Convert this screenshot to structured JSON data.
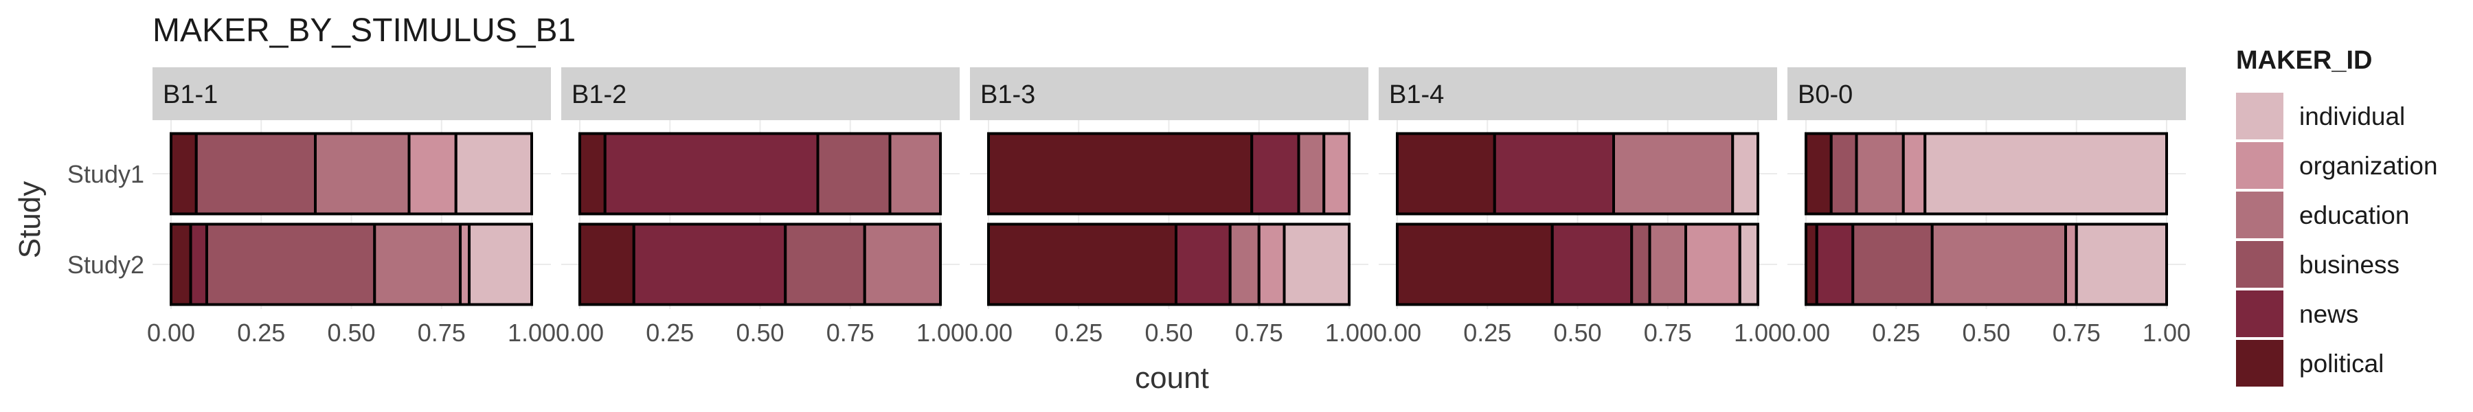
{
  "chart_data": {
    "type": "bar",
    "orientation": "horizontal",
    "stacked": "fill",
    "title": "MAKER_BY_STIMULUS_B1",
    "xlabel": "count",
    "ylabel": "Study",
    "xlim": [
      0,
      1
    ],
    "x_ticks": [
      "0.00",
      "0.25",
      "0.50",
      "0.75",
      "1.00"
    ],
    "y_categories": [
      "Study1",
      "Study2"
    ],
    "legend": {
      "title": "MAKER_ID",
      "position": "right",
      "entries": [
        {
          "name": "individual",
          "color": "#dbb9bf"
        },
        {
          "name": "organization",
          "color": "#cd919d"
        },
        {
          "name": "education",
          "color": "#b0717d"
        },
        {
          "name": "business",
          "color": "#975260"
        },
        {
          "name": "news",
          "color": "#7c273e"
        },
        {
          "name": "political",
          "color": "#621820"
        }
      ]
    },
    "stack_order": [
      "political",
      "news",
      "business",
      "education",
      "organization",
      "individual"
    ],
    "facets": [
      {
        "label": "B1-1",
        "rows": [
          {
            "study": "Study1",
            "values": {
              "political": 0.07,
              "news": 0.0,
              "business": 0.33,
              "education": 0.26,
              "organization": 0.13,
              "individual": 0.21
            }
          },
          {
            "study": "Study2",
            "values": {
              "political": 0.055,
              "news": 0.045,
              "business": 0.47,
              "education": 0.24,
              "organization": 0.025,
              "individual": 0.175
            }
          }
        ]
      },
      {
        "label": "B1-2",
        "rows": [
          {
            "study": "Study1",
            "values": {
              "political": 0.07,
              "news": 0.59,
              "business": 0.2,
              "education": 0.14,
              "organization": 0.0,
              "individual": 0.0
            }
          },
          {
            "study": "Study2",
            "values": {
              "political": 0.15,
              "news": 0.42,
              "business": 0.22,
              "education": 0.21,
              "organization": 0.0,
              "individual": 0.0
            }
          }
        ]
      },
      {
        "label": "B1-3",
        "rows": [
          {
            "study": "Study1",
            "values": {
              "political": 0.73,
              "news": 0.13,
              "business": 0.0,
              "education": 0.07,
              "organization": 0.07,
              "individual": 0.0
            }
          },
          {
            "study": "Study2",
            "values": {
              "political": 0.52,
              "news": 0.15,
              "business": 0.0,
              "education": 0.08,
              "organization": 0.07,
              "individual": 0.18
            }
          }
        ]
      },
      {
        "label": "B1-4",
        "rows": [
          {
            "study": "Study1",
            "values": {
              "political": 0.27,
              "news": 0.33,
              "business": 0.0,
              "education": 0.33,
              "organization": 0.0,
              "individual": 0.07
            }
          },
          {
            "study": "Study2",
            "values": {
              "political": 0.43,
              "news": 0.22,
              "business": 0.05,
              "education": 0.1,
              "organization": 0.15,
              "individual": 0.05
            }
          }
        ]
      },
      {
        "label": "B0-0",
        "rows": [
          {
            "study": "Study1",
            "values": {
              "political": 0.07,
              "news": 0.0,
              "business": 0.07,
              "education": 0.13,
              "organization": 0.06,
              "individual": 0.67
            }
          },
          {
            "study": "Study2",
            "values": {
              "political": 0.03,
              "news": 0.1,
              "business": 0.22,
              "education": 0.37,
              "organization": 0.03,
              "individual": 0.25
            }
          }
        ]
      }
    ]
  }
}
